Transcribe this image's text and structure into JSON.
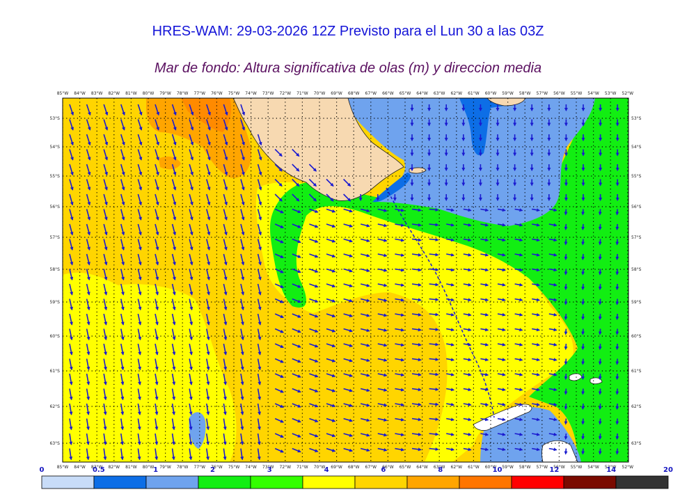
{
  "title": "HRES-WAM: 29-03-2026 12Z Previsto para el Lun 30 a las 03Z",
  "subtitle": "Mar de fondo: Altura significativa de olas (m) y direccion media",
  "map": {
    "lon_labels": [
      "85°W",
      "84°W",
      "83°W",
      "82°W",
      "81°W",
      "80°W",
      "79°W",
      "78°W",
      "77°W",
      "76°W",
      "75°W",
      "74°W",
      "73°W",
      "72°W",
      "71°W",
      "70°W",
      "69°W",
      "68°W",
      "67°W",
      "66°W",
      "65°W",
      "64°W",
      "63°W",
      "62°W",
      "61°W",
      "60°W",
      "59°W",
      "58°W",
      "57°W",
      "56°W",
      "55°W",
      "54°W",
      "53°W",
      "52°W"
    ],
    "lat_labels": [
      "53°S",
      "54°S",
      "55°S",
      "56°S",
      "57°S",
      "58°S",
      "59°S",
      "60°S",
      "61°S",
      "62°S",
      "63°S"
    ],
    "colors": {
      "land": "#f7d9b1",
      "deep_blue": "#0d6ee6",
      "light_blue": "#6fa3ee",
      "green": "#12ee12",
      "yellow": "#ffff00",
      "gold": "#ffd500",
      "orange": "#ffa500",
      "dark_orange": "#ff7500",
      "arrow": "#1a1ad0"
    }
  },
  "colorbar": {
    "ticks": [
      "0",
      "0.5",
      "1",
      "2",
      "3",
      "4",
      "6",
      "8",
      "10",
      "12",
      "14",
      "20"
    ],
    "colors": [
      "#c8dcf8",
      "#0d6ee6",
      "#6fa3ee",
      "#12ee12",
      "#33ff00",
      "#ffff00",
      "#ffd500",
      "#ffa500",
      "#ff7500",
      "#ff0000",
      "#7a0a00",
      "#333333"
    ]
  }
}
